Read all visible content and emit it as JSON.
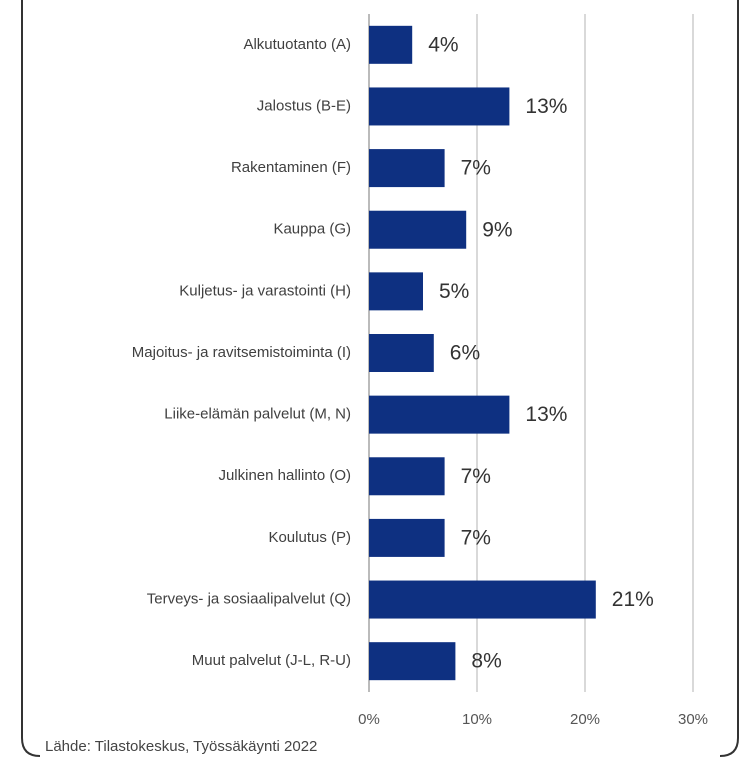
{
  "chart_data": {
    "type": "bar",
    "orientation": "horizontal",
    "categories": [
      "Alkutuotanto (A)",
      "Jalostus (B-E)",
      "Rakentaminen (F)",
      "Kauppa (G)",
      "Kuljetus- ja varastointi (H)",
      "Majoitus- ja ravitsemistoiminta (I)",
      "Liike-elämän palvelut (M, N)",
      "Julkinen hallinto (O)",
      "Koulutus (P)",
      "Terveys- ja sosiaalipalvelut (Q)",
      "Muut palvelut (J-L, R-U)"
    ],
    "values": [
      4,
      13,
      7,
      9,
      5,
      6,
      13,
      7,
      7,
      21,
      8
    ],
    "value_labels": [
      "4%",
      "13%",
      "7%",
      "9%",
      "5%",
      "6%",
      "13%",
      "7%",
      "7%",
      "21%",
      "8%"
    ],
    "color": "#0e3081",
    "xlim": [
      0,
      30
    ],
    "xticks": [
      {
        "value": 0,
        "label": "0%"
      },
      {
        "value": 10,
        "label": "10%"
      },
      {
        "value": 20,
        "label": "20%"
      },
      {
        "value": 30,
        "label": "30%"
      }
    ],
    "grid": true,
    "source": "Lähde: Tilastokeskus,  Työssäkäynti 2022"
  }
}
